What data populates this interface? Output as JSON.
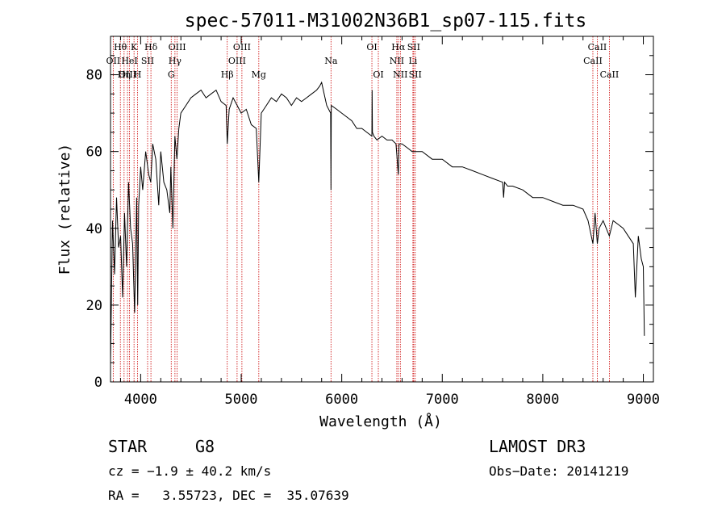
{
  "chart_data": {
    "type": "line",
    "title": "spec-57011-M31002N36B1_sp07-115.fits",
    "xlabel": "Wavelength (Å)",
    "ylabel": "Flux (relative)",
    "xlim": [
      3700,
      9100
    ],
    "ylim": [
      0,
      90
    ],
    "xticks": [
      4000,
      5000,
      6000,
      7000,
      8000,
      9000
    ],
    "yticks": [
      0,
      20,
      40,
      60,
      80
    ],
    "grid": false,
    "series": [
      {
        "name": "spectrum",
        "x": [
          3700,
          3720,
          3740,
          3760,
          3780,
          3800,
          3820,
          3840,
          3860,
          3880,
          3900,
          3920,
          3940,
          3960,
          3970,
          3980,
          4000,
          4020,
          4050,
          4080,
          4100,
          4120,
          4150,
          4180,
          4200,
          4230,
          4260,
          4290,
          4300,
          4320,
          4340,
          4360,
          4380,
          4400,
          4450,
          4500,
          4550,
          4600,
          4650,
          4700,
          4750,
          4800,
          4850,
          4861,
          4880,
          4920,
          4960,
          5000,
          5050,
          5100,
          5150,
          5175,
          5200,
          5250,
          5300,
          5350,
          5400,
          5450,
          5500,
          5550,
          5600,
          5650,
          5700,
          5750,
          5780,
          5800,
          5850,
          5890,
          5893,
          5896,
          5950,
          6000,
          6050,
          6100,
          6150,
          6200,
          6250,
          6300,
          6302,
          6305,
          6320,
          6350,
          6400,
          6450,
          6500,
          6540,
          6563,
          6570,
          6600,
          6650,
          6700,
          6750,
          6800,
          6900,
          7000,
          7100,
          7200,
          7300,
          7400,
          7500,
          7600,
          7610,
          7620,
          7650,
          7700,
          7800,
          7900,
          8000,
          8100,
          8200,
          8300,
          8400,
          8450,
          8498,
          8520,
          8542,
          8560,
          8600,
          8662,
          8700,
          8750,
          8800,
          8850,
          8900,
          8920,
          8950,
          8980,
          9000,
          9010
        ],
        "values": [
          5,
          42,
          28,
          48,
          35,
          38,
          22,
          44,
          30,
          52,
          40,
          36,
          18,
          48,
          20,
          46,
          56,
          50,
          60,
          54,
          52,
          62,
          58,
          46,
          60,
          52,
          50,
          44,
          56,
          40,
          64,
          58,
          66,
          70,
          72,
          74,
          75,
          76,
          74,
          75,
          76,
          73,
          72,
          62,
          71,
          74,
          72,
          70,
          71,
          67,
          66,
          52,
          70,
          72,
          74,
          73,
          75,
          74,
          72,
          74,
          73,
          74,
          75,
          76,
          77,
          78,
          72,
          70,
          50,
          72,
          71,
          70,
          69,
          68,
          66,
          66,
          65,
          64,
          76,
          65,
          64,
          63,
          64,
          63,
          63,
          62,
          54,
          62,
          62,
          61,
          60,
          60,
          60,
          58,
          58,
          56,
          56,
          55,
          54,
          53,
          52,
          48,
          52,
          51,
          51,
          50,
          48,
          48,
          47,
          46,
          46,
          45,
          42,
          36,
          44,
          36,
          40,
          42,
          38,
          42,
          41,
          40,
          38,
          36,
          22,
          38,
          32,
          30,
          12
        ]
      }
    ],
    "line_annotations": [
      {
        "label": "Hθ",
        "wavelength": 3798,
        "row": 1
      },
      {
        "label": "OII",
        "wavelength": 3727,
        "row": 2
      },
      {
        "label": "OIII",
        "wavelength": 3869,
        "row": 3
      },
      {
        "label": "Hη",
        "wavelength": 3835,
        "row": 3
      },
      {
        "label": "K",
        "wavelength": 3934,
        "row": 1
      },
      {
        "label": "HeI",
        "wavelength": 3889,
        "row": 2
      },
      {
        "label": "H",
        "wavelength": 3969,
        "row": 3
      },
      {
        "label": "SII",
        "wavelength": 4069,
        "row": 2
      },
      {
        "label": "Hδ",
        "wavelength": 4102,
        "row": 1
      },
      {
        "label": "OIII",
        "wavelength": 4363,
        "row": 1
      },
      {
        "label": "Hγ",
        "wavelength": 4341,
        "row": 2
      },
      {
        "label": "G",
        "wavelength": 4304,
        "row": 3
      },
      {
        "label": "Hβ",
        "wavelength": 4861,
        "row": 3
      },
      {
        "label": "OIII",
        "wavelength": 4959,
        "row": 2
      },
      {
        "label": "OIII",
        "wavelength": 5007,
        "row": 1
      },
      {
        "label": "Mg",
        "wavelength": 5175,
        "row": 3
      },
      {
        "label": "Na",
        "wavelength": 5893,
        "row": 2
      },
      {
        "label": "OI",
        "wavelength": 6300,
        "row": 1
      },
      {
        "label": "OI",
        "wavelength": 6364,
        "row": 3
      },
      {
        "label": "Hα",
        "wavelength": 6563,
        "row": 1
      },
      {
        "label": "NII",
        "wavelength": 6548,
        "row": 2
      },
      {
        "label": "NII",
        "wavelength": 6583,
        "row": 3
      },
      {
        "label": "SII",
        "wavelength": 6716,
        "row": 1
      },
      {
        "label": "Li",
        "wavelength": 6708,
        "row": 2
      },
      {
        "label": "SII",
        "wavelength": 6731,
        "row": 3
      },
      {
        "label": "CaII",
        "wavelength": 8542,
        "row": 1
      },
      {
        "label": "CaII",
        "wavelength": 8498,
        "row": 2
      },
      {
        "label": "CaII",
        "wavelength": 8662,
        "row": 3
      }
    ]
  },
  "info": {
    "object_class": "STAR",
    "subclass": "G8",
    "cz": "cz = −1.9 ± 40.2 km/s",
    "coords": "RA =   3.55723, DEC =  35.07639",
    "survey": "LAMOST DR3",
    "obs_date": "Obs−Date: 20141219"
  },
  "colors": {
    "line": "#000000",
    "marker": "#cc0000",
    "background": "#ffffff"
  }
}
